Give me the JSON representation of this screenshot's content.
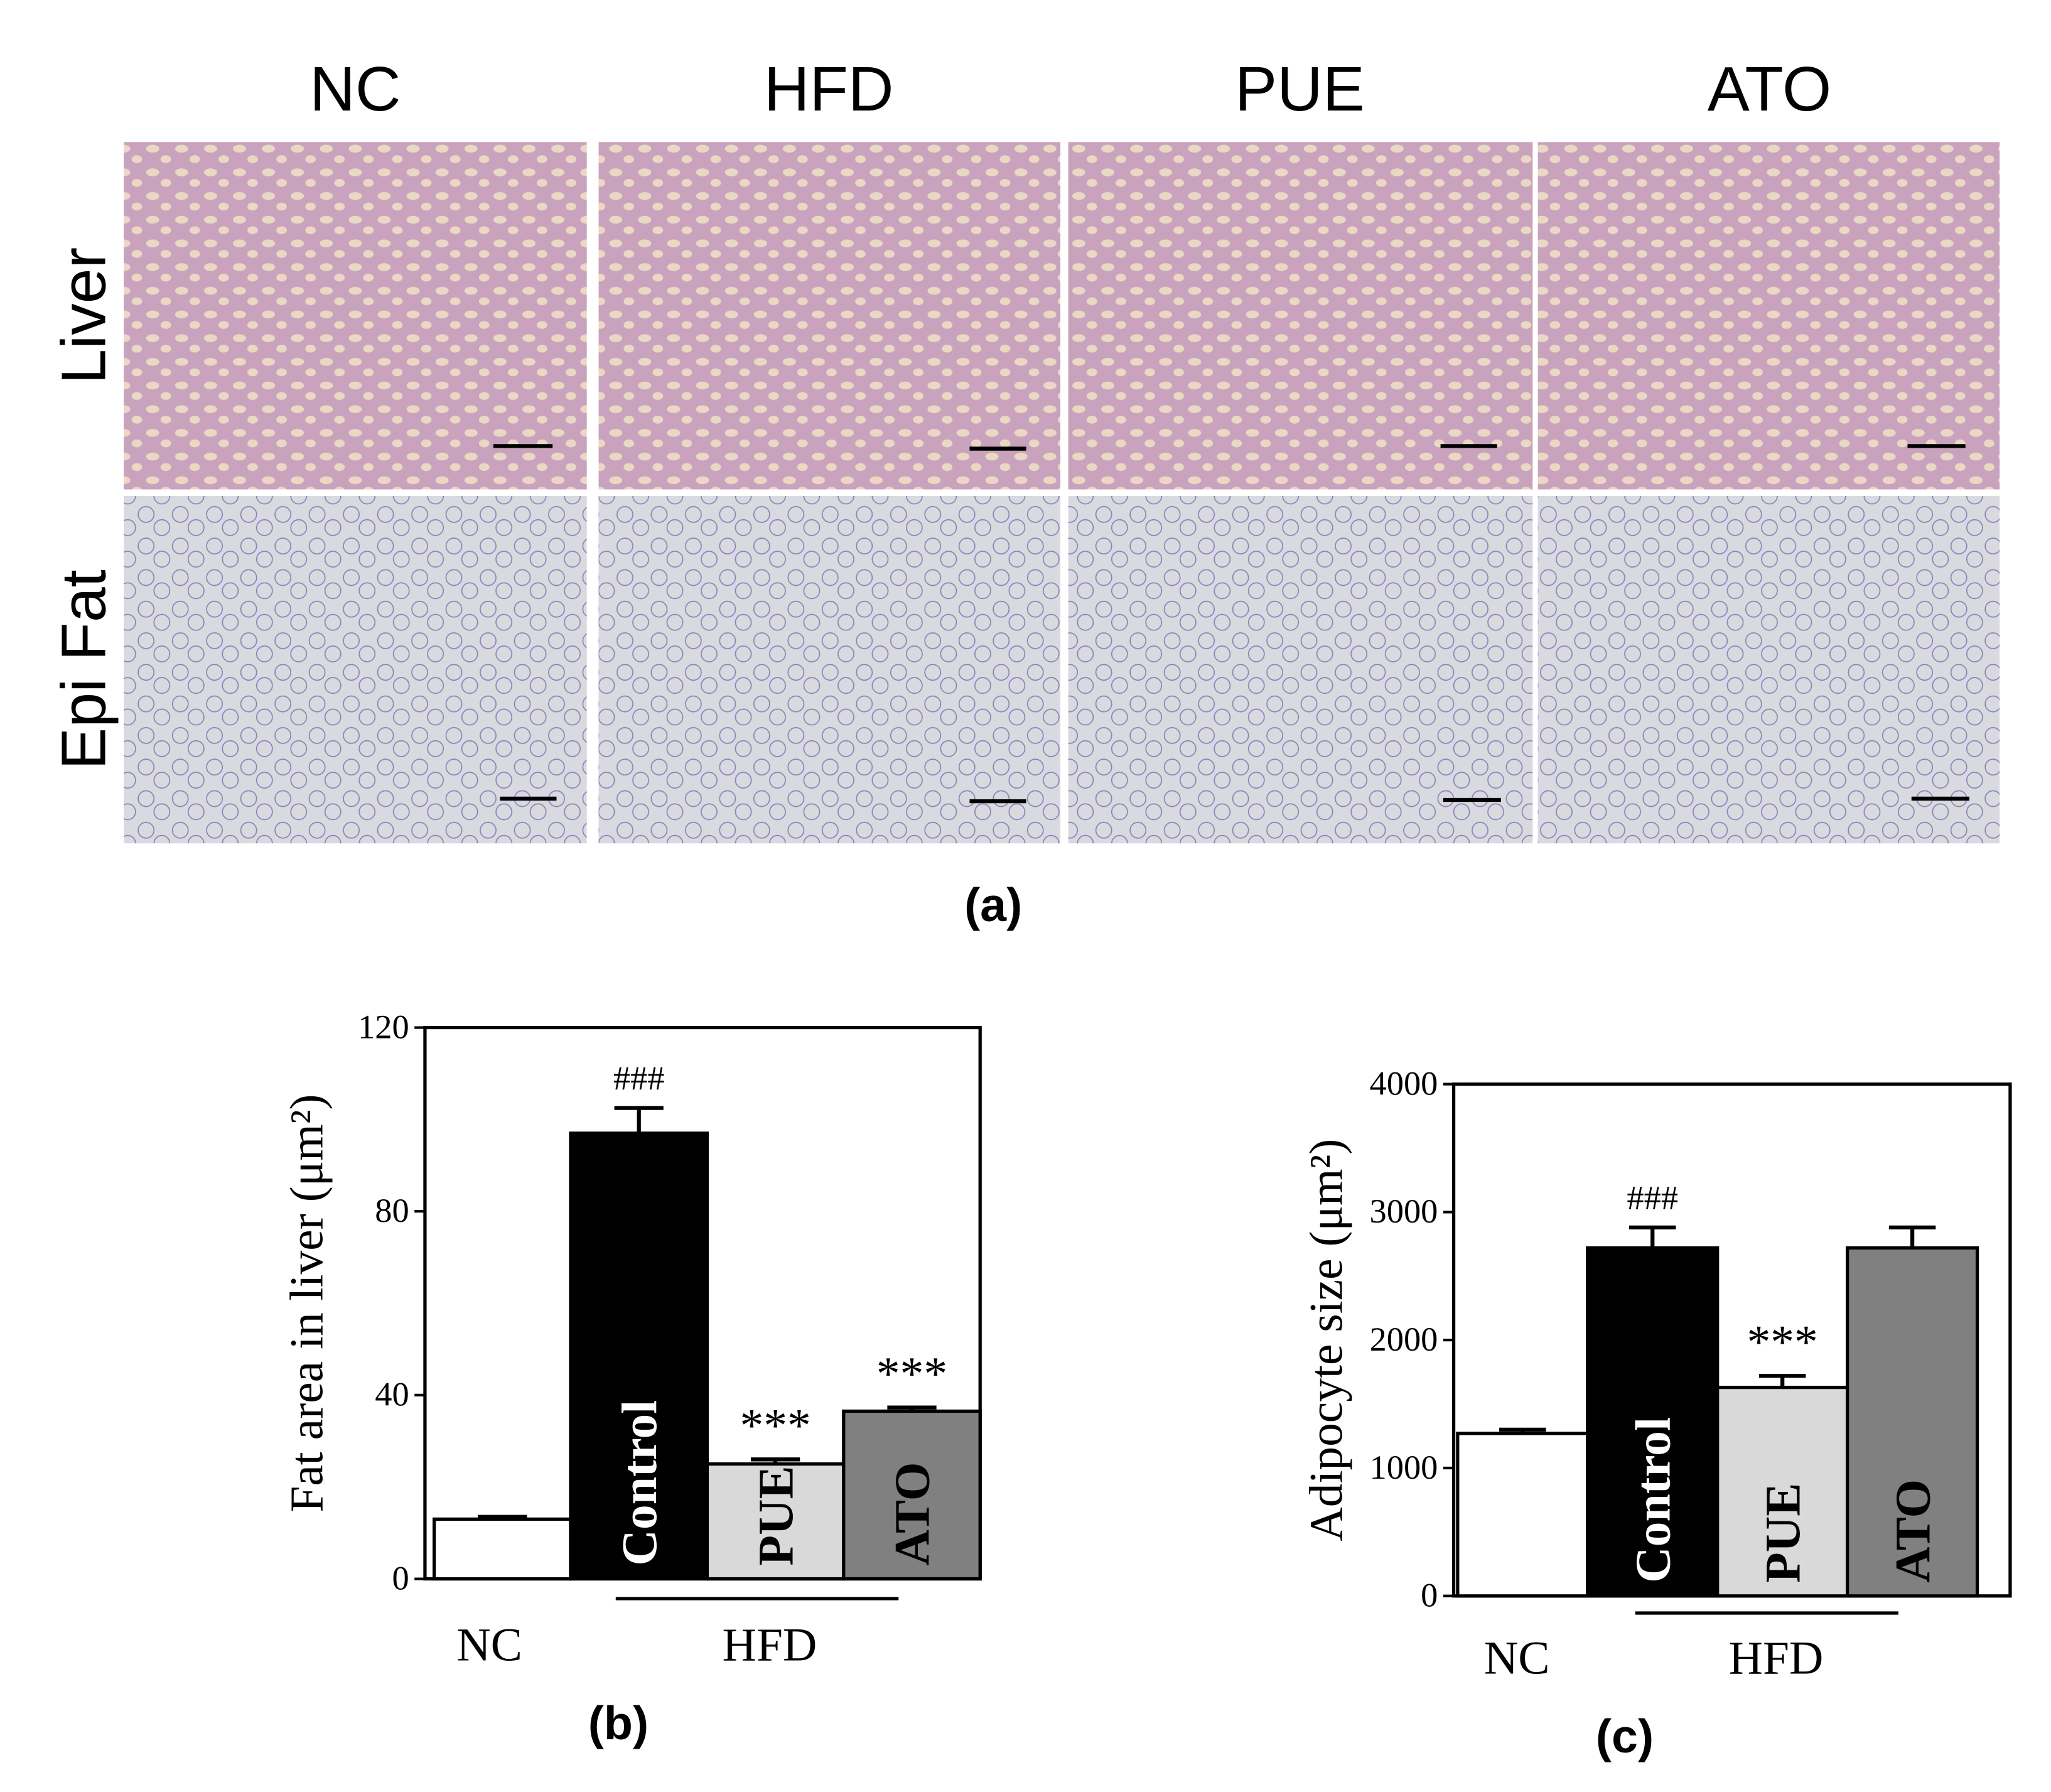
{
  "panel_a": {
    "columns": [
      "NC",
      "HFD",
      "PUE",
      "ATO"
    ],
    "rows": [
      "Liver",
      "Epi Fat"
    ],
    "label": "(a)"
  },
  "chart_data": [
    {
      "type": "bar",
      "title": "(b)",
      "y_label": "Fat area in liver (μm²)",
      "categories": [
        "NC",
        "Control",
        "PUE",
        "ATO"
      ],
      "group_label": "HFD",
      "values": [
        13,
        97,
        25,
        36.5
      ],
      "errors": [
        0.5,
        5.5,
        1,
        0.8
      ],
      "value_annotations": [
        null,
        "###",
        "***",
        "***"
      ],
      "colors": [
        "#ffffff",
        "#000000",
        "#d9d9d9",
        "#808080"
      ],
      "ylim": [
        0,
        120
      ],
      "yticks": [
        0,
        40,
        80,
        120
      ]
    },
    {
      "type": "bar",
      "title": "(c)",
      "y_label": "Adipocyte size (μm²)",
      "categories": [
        "NC",
        "Control",
        "PUE",
        "ATO"
      ],
      "group_label": "HFD",
      "values": [
        1270,
        2720,
        1630,
        2720
      ],
      "errors": [
        30,
        160,
        90,
        160
      ],
      "value_annotations": [
        null,
        "###",
        "***",
        null
      ],
      "colors": [
        "#ffffff",
        "#000000",
        "#d9d9d9",
        "#808080"
      ],
      "ylim": [
        0,
        4000
      ],
      "yticks": [
        0,
        1000,
        2000,
        3000,
        4000
      ]
    }
  ]
}
